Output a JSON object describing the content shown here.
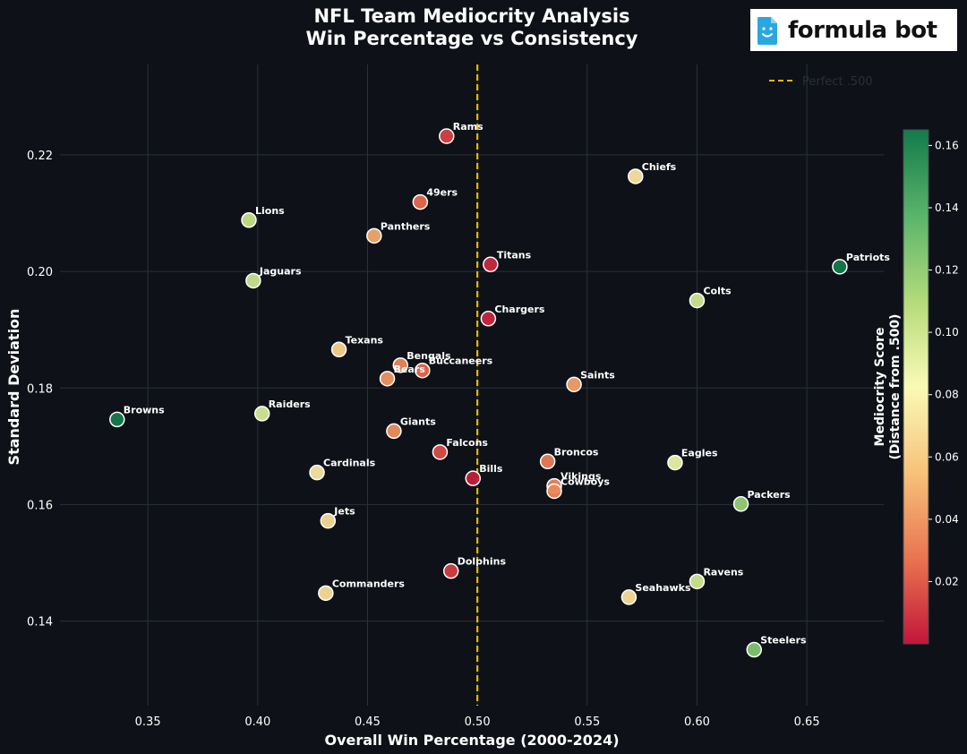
{
  "logo": {
    "text": "formula bot",
    "icon": "smiling-doc-icon"
  },
  "chart_data": {
    "type": "scatter",
    "title": "NFL Team Mediocrity Analysis",
    "subtitle": "Win Percentage vs Consistency",
    "xlabel": "Overall Win Percentage (2000-2024)",
    "ylabel": "Standard Deviation",
    "xlim": [
      0.31,
      0.685
    ],
    "ylim": [
      0.1255,
      0.2355
    ],
    "xticks": [
      "0.35",
      "0.40",
      "0.45",
      "0.50",
      "0.55",
      "0.60",
      "0.65"
    ],
    "xtick_values": [
      0.35,
      0.4,
      0.45,
      0.5,
      0.55,
      0.6,
      0.65
    ],
    "yticks": [
      "0.14",
      "0.16",
      "0.18",
      "0.20",
      "0.22"
    ],
    "ytick_values": [
      0.14,
      0.16,
      0.18,
      0.2,
      0.22
    ],
    "grid": true,
    "reference_line": {
      "x": 0.5,
      "label": "Perfect .500",
      "color": "#e6b800",
      "style": "dashed"
    },
    "legend": {
      "placement": "top-right",
      "entries": [
        "Perfect .500"
      ]
    },
    "colorbar": {
      "title_line1": "Mediocrity Score",
      "title_line2": "(Distance from .500)",
      "range": [
        0.0,
        0.165
      ],
      "ticks": [
        "0.02",
        "0.04",
        "0.06",
        "0.08",
        "0.10",
        "0.12",
        "0.14",
        "0.16"
      ],
      "tick_values": [
        0.02,
        0.04,
        0.06,
        0.08,
        0.1,
        0.12,
        0.14,
        0.16
      ],
      "colormap": [
        "#c2163a",
        "#e8714f",
        "#f7c17a",
        "#fafab5",
        "#b7dc7c",
        "#5bb56b",
        "#147a4a"
      ]
    },
    "points": [
      {
        "team": "Rams",
        "x": 0.486,
        "y": 0.2232
      },
      {
        "team": "Chiefs",
        "x": 0.572,
        "y": 0.2163
      },
      {
        "team": "49ers",
        "x": 0.474,
        "y": 0.2119
      },
      {
        "team": "Lions",
        "x": 0.396,
        "y": 0.2088
      },
      {
        "team": "Panthers",
        "x": 0.453,
        "y": 0.2061
      },
      {
        "team": "Titans",
        "x": 0.506,
        "y": 0.2012
      },
      {
        "team": "Patriots",
        "x": 0.665,
        "y": 0.2008
      },
      {
        "team": "Jaguars",
        "x": 0.398,
        "y": 0.1984
      },
      {
        "team": "Colts",
        "x": 0.6,
        "y": 0.195
      },
      {
        "team": "Chargers",
        "x": 0.505,
        "y": 0.1919
      },
      {
        "team": "Texans",
        "x": 0.437,
        "y": 0.1866
      },
      {
        "team": "Bengals",
        "x": 0.465,
        "y": 0.1839
      },
      {
        "team": "Buccaneers",
        "x": 0.475,
        "y": 0.183
      },
      {
        "team": "Bears",
        "x": 0.459,
        "y": 0.1816
      },
      {
        "team": "Saints",
        "x": 0.544,
        "y": 0.1806
      },
      {
        "team": "Raiders",
        "x": 0.402,
        "y": 0.1756
      },
      {
        "team": "Browns",
        "x": 0.336,
        "y": 0.1746
      },
      {
        "team": "Giants",
        "x": 0.462,
        "y": 0.1726
      },
      {
        "team": "Falcons",
        "x": 0.483,
        "y": 0.169
      },
      {
        "team": "Broncos",
        "x": 0.532,
        "y": 0.1674
      },
      {
        "team": "Eagles",
        "x": 0.59,
        "y": 0.1672
      },
      {
        "team": "Cardinals",
        "x": 0.427,
        "y": 0.1655
      },
      {
        "team": "Bills",
        "x": 0.498,
        "y": 0.1645
      },
      {
        "team": "Vikings",
        "x": 0.535,
        "y": 0.1632
      },
      {
        "team": "Cowboys",
        "x": 0.535,
        "y": 0.1623
      },
      {
        "team": "Packers",
        "x": 0.62,
        "y": 0.1601
      },
      {
        "team": "Jets",
        "x": 0.432,
        "y": 0.1572
      },
      {
        "team": "Dolphins",
        "x": 0.488,
        "y": 0.1486
      },
      {
        "team": "Ravens",
        "x": 0.6,
        "y": 0.1468
      },
      {
        "team": "Commanders",
        "x": 0.431,
        "y": 0.1448
      },
      {
        "team": "Seahawks",
        "x": 0.569,
        "y": 0.1441
      },
      {
        "team": "Steelers",
        "x": 0.626,
        "y": 0.1351
      }
    ]
  }
}
